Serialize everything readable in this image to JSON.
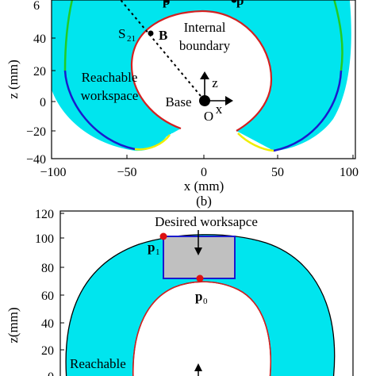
{
  "panel_top": {
    "title": "",
    "caption": "(b)",
    "xlabel": "x (mm)",
    "ylabel": "z (mm)",
    "xticks": [
      "−100",
      "−50",
      "0",
      "50",
      "100"
    ],
    "yticks": [
      "40",
      "20",
      "0",
      "−20",
      "−40"
    ],
    "top_tick_partial": "6",
    "annotations": {
      "internal_boundary_1": "Internal",
      "internal_boundary_2": "boundary",
      "reachable_1": "Reachable",
      "reachable_2": "workspace",
      "base": "Base",
      "origin": "O",
      "axis_x": "x",
      "axis_z": "z",
      "s21": "S",
      "s21_sub": "21",
      "point_b": "B",
      "p_top_left": "p",
      "p_top_right": "p"
    },
    "colors": {
      "workspace_fill": "#00e5ee",
      "inner_boundary": "#d42020",
      "outer_edge_a": "#1a1acd",
      "outer_edge_b": "#22cc22",
      "outer_edge_c": "#eeee00"
    }
  },
  "panel_bottom": {
    "ylabel": "z(mm)",
    "yticks": [
      "120",
      "100",
      "80",
      "60",
      "40",
      "20"
    ],
    "bottom_tick_partial": "0",
    "annotations": {
      "desired": "Desired worksapce",
      "p1": "p",
      "p1_sub": "1",
      "p0": "p",
      "p0_sub": "0",
      "reachable": "Reachable"
    },
    "colors": {
      "workspace_fill": "#00e5ee",
      "desired_box_fill": "#c0c0c0",
      "desired_box_edge": "#1a1acd",
      "marker": "#dd1111"
    }
  },
  "chart_data": [
    {
      "type": "area",
      "description_caption": "(b)",
      "xlabel": "x (mm)",
      "ylabel": "z (mm)",
      "xlim": [
        -100,
        100
      ],
      "ylim": [
        -40,
        70
      ],
      "points": [
        {
          "label": "B",
          "x": -37,
          "z": 48
        },
        {
          "label": "O",
          "x": 0,
          "z": 0
        }
      ]
    },
    {
      "type": "area",
      "ylabel": "z(mm)",
      "ylim": [
        0,
        120
      ],
      "points": [
        {
          "label": "p1",
          "z": 102
        },
        {
          "label": "p0",
          "z": 70
        }
      ],
      "desired_workspace_z": [
        70,
        102
      ]
    }
  ]
}
